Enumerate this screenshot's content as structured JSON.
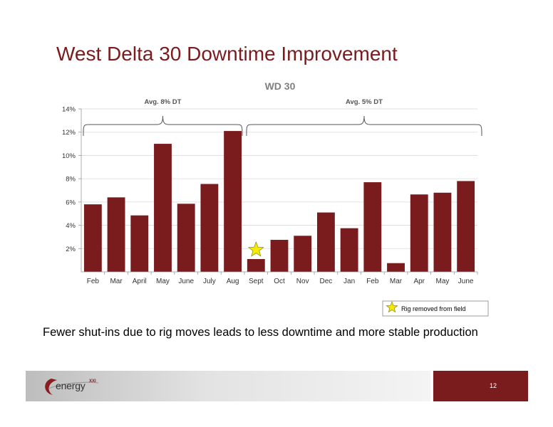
{
  "slide": {
    "title": "West Delta 30 Downtime Improvement",
    "caption": "Fewer shut-ins due to rig moves leads to less downtime and more stable production",
    "page_number": "12",
    "logo_text": "energy",
    "logo_sup": "XXI"
  },
  "colors": {
    "bar": "#7a1c1e",
    "title": "#7a1c1e",
    "star": "#f5e90b",
    "footer_accent": "#7a1c1e"
  },
  "chart_data": {
    "type": "bar",
    "title": "WD 30",
    "xlabel": "",
    "ylabel": "",
    "categories": [
      "Feb",
      "Mar",
      "April",
      "May",
      "June",
      "July",
      "Aug",
      "Sept",
      "Oct",
      "Nov",
      "Dec",
      "Jan",
      "Feb",
      "Mar",
      "Apr",
      "May",
      "June"
    ],
    "values": [
      5.8,
      6.4,
      4.85,
      11.0,
      5.85,
      7.55,
      12.1,
      1.1,
      2.75,
      3.1,
      5.1,
      3.75,
      7.7,
      0.75,
      6.65,
      6.8,
      7.8
    ],
    "ylim": [
      0,
      14
    ],
    "yticks": [
      2,
      4,
      6,
      8,
      10,
      12,
      14
    ],
    "ytick_labels": [
      "2%",
      "4%",
      "6%",
      "8%",
      "10%",
      "12%",
      "14%"
    ],
    "grid": true,
    "legend": {
      "label": "Rig removed from field",
      "icon": "star-icon",
      "position": "bottom-right"
    },
    "star_marker_category_index": 7,
    "annotations": [
      {
        "text": "Avg. 8% DT",
        "from_index": 0,
        "to_index": 6
      },
      {
        "text": "Avg. 5% DT",
        "from_index": 7,
        "to_index": 16
      }
    ]
  }
}
